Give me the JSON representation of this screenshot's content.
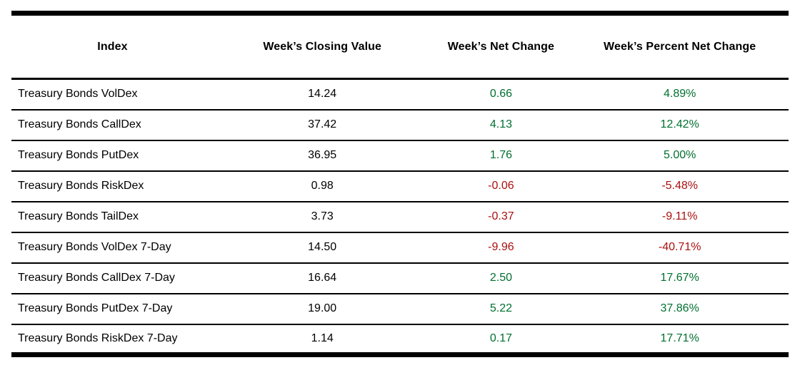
{
  "colors": {
    "positive": "#007030",
    "negative": "#AA0F0F",
    "border": "#000000",
    "text": "#000000",
    "background": "#FFFFFF"
  },
  "table": {
    "columns": [
      {
        "label": "Index"
      },
      {
        "label": "Week’s Closing Value"
      },
      {
        "label": "Week’s Net Change"
      },
      {
        "label": "Week’s Percent Net Change"
      }
    ],
    "rows": [
      {
        "index": "Treasury Bonds VolDex",
        "closing_value": "14.24",
        "net_change": "0.66",
        "percent_net_change": "4.89%"
      },
      {
        "index": "Treasury Bonds CallDex",
        "closing_value": "37.42",
        "net_change": "4.13",
        "percent_net_change": "12.42%"
      },
      {
        "index": "Treasury Bonds PutDex",
        "closing_value": "36.95",
        "net_change": "1.76",
        "percent_net_change": "5.00%"
      },
      {
        "index": "Treasury Bonds RiskDex",
        "closing_value": "0.98",
        "net_change": "-0.06",
        "percent_net_change": "-5.48%"
      },
      {
        "index": "Treasury Bonds TailDex",
        "closing_value": "3.73",
        "net_change": "-0.37",
        "percent_net_change": "-9.11%"
      },
      {
        "index": "Treasury Bonds VolDex 7-Day",
        "closing_value": "14.50",
        "net_change": "-9.96",
        "percent_net_change": "-40.71%"
      },
      {
        "index": "Treasury Bonds CallDex 7-Day",
        "closing_value": "16.64",
        "net_change": "2.50",
        "percent_net_change": "17.67%"
      },
      {
        "index": "Treasury Bonds PutDex 7-Day",
        "closing_value": "19.00",
        "net_change": "5.22",
        "percent_net_change": "37.86%"
      },
      {
        "index": "Treasury Bonds RiskDex 7-Day",
        "closing_value": "1.14",
        "net_change": "0.17",
        "percent_net_change": "17.71%"
      }
    ]
  }
}
